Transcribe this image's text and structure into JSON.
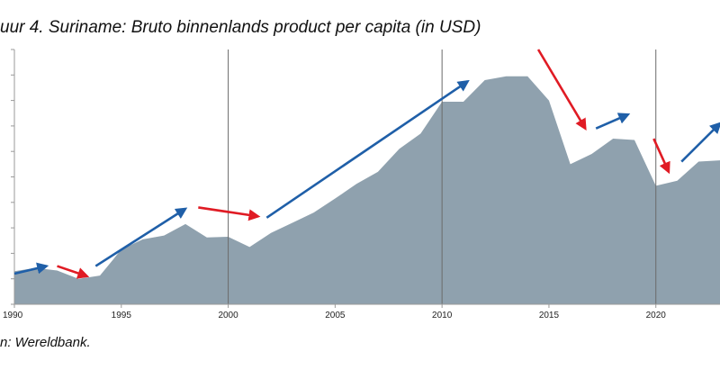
{
  "title": "uur 4. Suriname: Bruto binnenlands product per capita (in USD)",
  "source": "n: Wereldbank.",
  "chart_data": {
    "type": "area",
    "x": [
      1990,
      1991,
      1992,
      1993,
      1994,
      1995,
      1996,
      1997,
      1998,
      1999,
      2000,
      2001,
      2002,
      2003,
      2004,
      2005,
      2006,
      2007,
      2008,
      2009,
      2010,
      2011,
      2012,
      2013,
      2014,
      2015,
      2016,
      2017,
      2018,
      2019,
      2020,
      2021,
      2022,
      2023
    ],
    "y": [
      2600,
      2850,
      2650,
      2000,
      2250,
      4300,
      5100,
      5400,
      6300,
      5250,
      5300,
      4500,
      5600,
      6400,
      7200,
      8300,
      9450,
      10400,
      12200,
      13400,
      15900,
      15900,
      17600,
      17900,
      17900,
      16000,
      11000,
      11800,
      13000,
      12900,
      9300,
      9700,
      11200,
      11300
    ],
    "xlim": [
      1990,
      2023
    ],
    "ylim": [
      0,
      20000
    ],
    "x_ticks": [
      "1990",
      "1995",
      "2000",
      "2005",
      "2010",
      "2015",
      "2020"
    ],
    "vertical_lines_at": [
      2000,
      2010,
      2020
    ],
    "fill_color": "#8fa1ae",
    "trend_arrows": [
      {
        "color": "#1f5fa8",
        "from": [
          1990,
          2400
        ],
        "to": [
          1991.5,
          3000
        ]
      },
      {
        "color": "#e01b24",
        "from": [
          1992,
          3000
        ],
        "to": [
          1993.4,
          2200
        ]
      },
      {
        "color": "#1f5fa8",
        "from": [
          1993.8,
          3000
        ],
        "to": [
          1998,
          7500
        ]
      },
      {
        "color": "#e01b24",
        "from": [
          1998.6,
          7600
        ],
        "to": [
          2001.4,
          6900
        ]
      },
      {
        "color": "#1f5fa8",
        "from": [
          2001.8,
          6800
        ],
        "to": [
          2011.2,
          17500
        ]
      },
      {
        "color": "#e01b24",
        "from": [
          2014.5,
          20000
        ],
        "to": [
          2016.7,
          13800
        ]
      },
      {
        "color": "#1f5fa8",
        "from": [
          2017.2,
          13800
        ],
        "to": [
          2018.7,
          14900
        ]
      },
      {
        "color": "#e01b24",
        "from": [
          2019.9,
          13000
        ],
        "to": [
          2020.6,
          10400
        ]
      },
      {
        "color": "#1f5fa8",
        "from": [
          2021.2,
          11200
        ],
        "to": [
          2023,
          14200
        ]
      }
    ]
  }
}
